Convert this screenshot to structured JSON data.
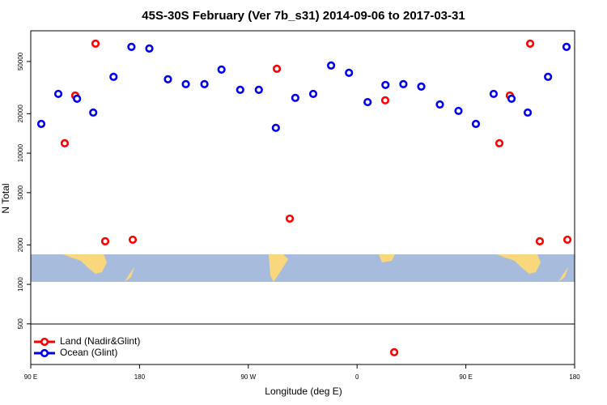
{
  "chart_data": {
    "type": "scatter",
    "title": "45S-30S February (Ver 7b_s31)   2014-09-06 to 2017-03-31",
    "x_label": "Longitude (deg E)",
    "y_label": "N Total",
    "log_y": true,
    "legend": "bottom-left",
    "xlim": [
      90,
      540
    ],
    "xticks": [
      {
        "value": 90,
        "label": "90 E"
      },
      {
        "value": 180,
        "label": "180"
      },
      {
        "value": 270,
        "label": "90 W"
      },
      {
        "value": 360,
        "label": "0"
      },
      {
        "value": 450,
        "label": "90 E"
      },
      {
        "value": 540,
        "label": "180"
      }
    ],
    "ylim": [
      245,
      85700
    ],
    "yticks": [
      500,
      1000,
      2000,
      5000,
      10000,
      20000,
      50000
    ],
    "series": [
      {
        "name": "Land (Nadir&Glint)",
        "color": "#ff0000",
        "x": [
          118.1,
          126.8,
          143.6,
          151.6,
          174.4,
          293.6,
          304.3,
          383.3,
          390.7,
          477.7,
          486.4,
          503.2,
          511.2,
          534.0
        ],
        "values": [
          11900,
          27500,
          68400,
          2130,
          2190,
          44000,
          3170,
          25300,
          304,
          11900,
          27500,
          68400,
          2130,
          2190
        ]
      },
      {
        "name": "Ocean (Glint)",
        "color": "#0000ee",
        "x": [
          98.7,
          112.8,
          128.3,
          141.7,
          158.5,
          173.3,
          188.1,
          203.5,
          218.3,
          233.7,
          247.8,
          263.3,
          278.7,
          292.8,
          308.9,
          323.7,
          338.5,
          353.3,
          368.7,
          383.5,
          398.3,
          413.1,
          428.5,
          443.9,
          458.3,
          473.0,
          487.8,
          501.2,
          518.0,
          533.3
        ],
        "values": [
          16700,
          28300,
          26000,
          20400,
          38200,
          64600,
          62800,
          36600,
          33600,
          33600,
          43400,
          30400,
          30400,
          15600,
          26400,
          28300,
          46600,
          41000,
          24500,
          33100,
          33600,
          32200,
          23500,
          21000,
          16700,
          28300,
          26000,
          20400,
          38200,
          64600
        ]
      }
    ]
  }
}
